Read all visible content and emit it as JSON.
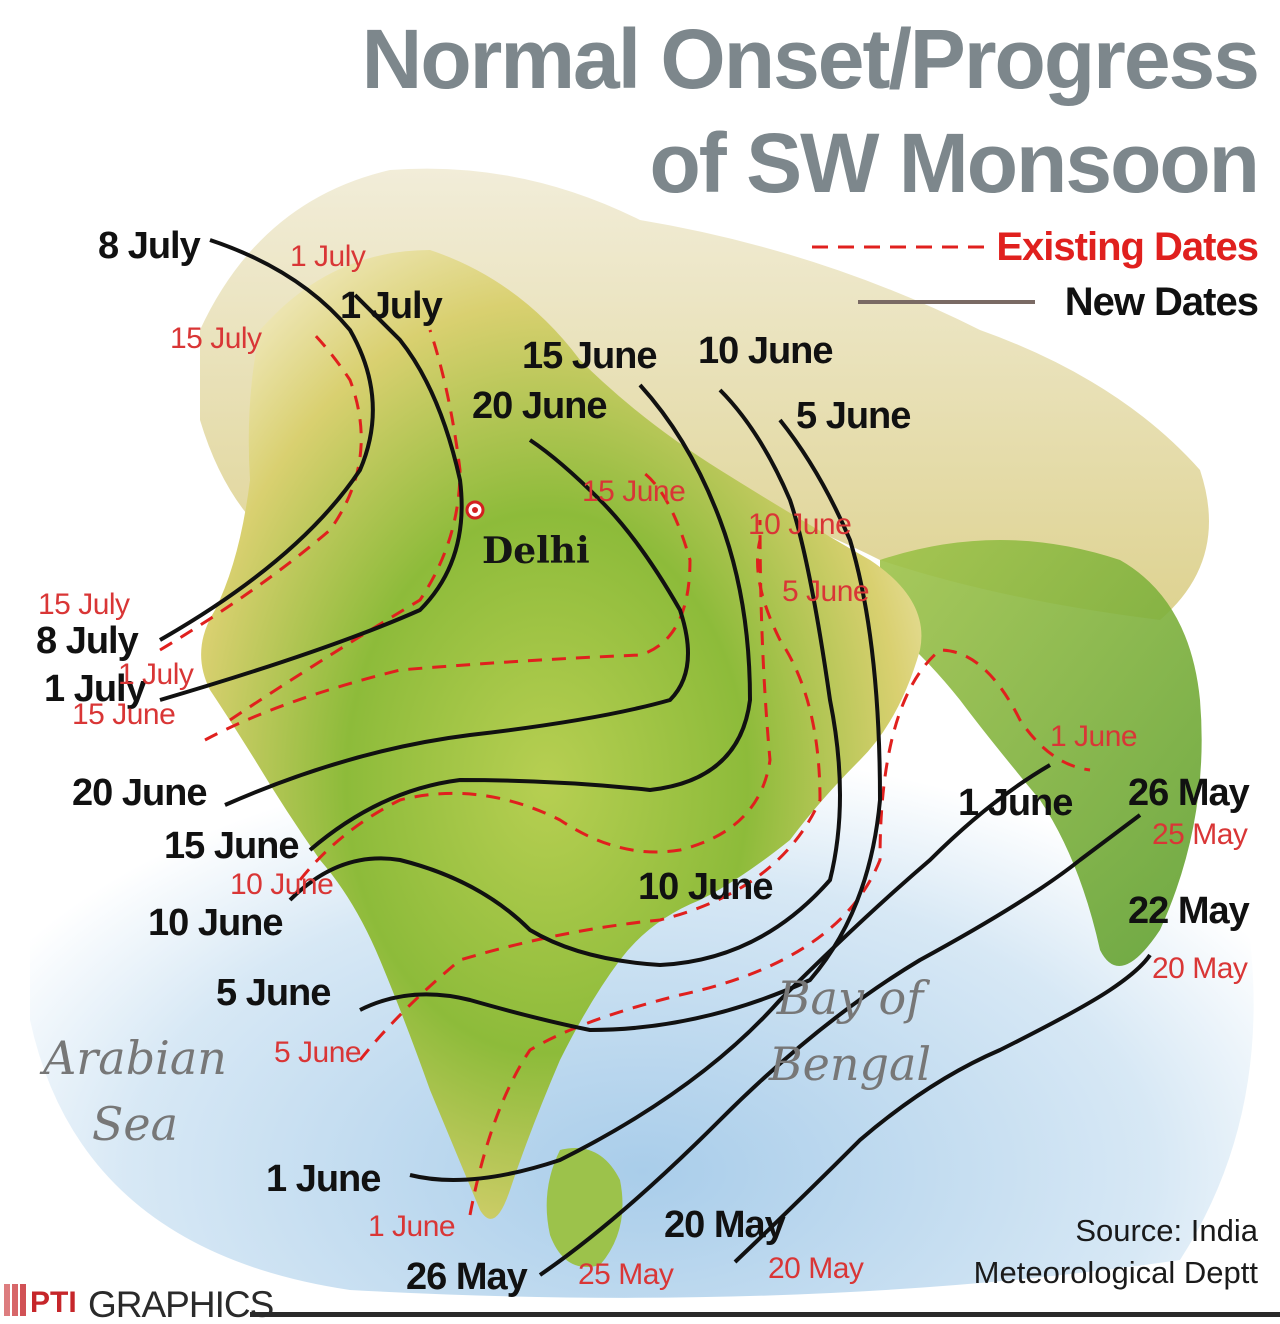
{
  "title": {
    "line1": "Normal Onset/Progress",
    "line2": "of SW Monsoon"
  },
  "legend": {
    "existing": "Existing Dates",
    "new": "New Dates"
  },
  "places": {
    "city": "Delhi",
    "arabian_sea": "Arabian Sea",
    "bay_of_bengal": "Bay of Bengal"
  },
  "new_date_labels": [
    "8 July",
    "1 July",
    "15 June",
    "10 June",
    "20 June",
    "5 June",
    "8 July",
    "1 July",
    "20 June",
    "15 June",
    "10 June",
    "5 June",
    "1 June",
    "26 May",
    "10 June",
    "1 June",
    "26 May",
    "22 May",
    "20 May"
  ],
  "existing_date_labels": [
    "1 July",
    "15 July",
    "15 June",
    "10 June",
    "5 June",
    "15 July",
    "1 July",
    "15 June",
    "10 June",
    "5 June",
    "1 June",
    "25 May",
    "20 May",
    "1 June",
    "25 May",
    "20 May"
  ],
  "source": "Source: India Meteorological Deptt",
  "credit": {
    "logo": "PTI",
    "text": "GRAPHICS"
  },
  "colors": {
    "title": "#7d878c",
    "existing_line": "#e0201e",
    "new_line": "#111111",
    "sea": "#c7ddef",
    "land_green": "#7fb536",
    "land_yellow": "#d9d46a"
  }
}
